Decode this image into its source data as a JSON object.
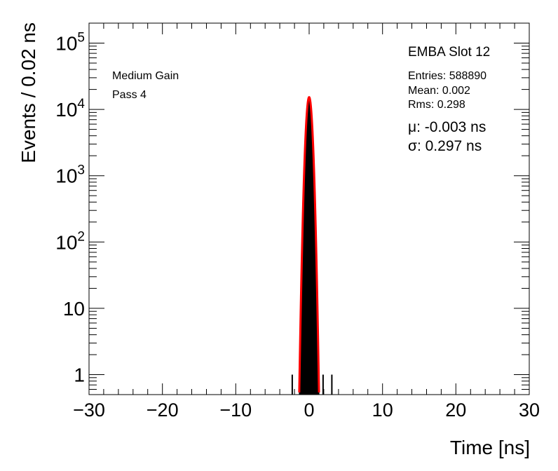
{
  "chart_data": {
    "type": "line",
    "title": "",
    "xlabel": "Time [ns]",
    "ylabel": "Events / 0.02 ns",
    "xlim": [
      -30,
      30
    ],
    "ylim": [
      0.5,
      200000
    ],
    "yscale": "log",
    "grid": false,
    "x_ticks": [
      -30,
      -20,
      -10,
      0,
      10,
      20,
      30
    ],
    "x_tick_labels": [
      "−30",
      "−20",
      "−10",
      "0",
      "10",
      "20",
      "30"
    ],
    "y_ticks": [
      1,
      10,
      100,
      1000,
      10000,
      100000
    ],
    "y_tick_labels": [
      {
        "base": "1",
        "exp": ""
      },
      {
        "base": "10",
        "exp": ""
      },
      {
        "base": "10",
        "exp": "2"
      },
      {
        "base": "10",
        "exp": "3"
      },
      {
        "base": "10",
        "exp": "4"
      },
      {
        "base": "10",
        "exp": "5"
      }
    ],
    "annotations_left": [
      "Medium Gain",
      "Pass 4"
    ],
    "stats": {
      "title": "EMBA Slot 12",
      "entries": "Entries: 588890",
      "mean": "Mean: 0.002",
      "rms": "Rms: 0.298"
    },
    "fit_text": {
      "mu": "μ: -0.003 ns",
      "sigma": "σ: 0.297 ns"
    },
    "fit": {
      "amplitude": 15300,
      "mu": -0.003,
      "sigma": 0.297
    },
    "series": [
      {
        "type": "histogram",
        "color": "#000000",
        "x": [
          -2.3,
          -1.3,
          -1.2,
          -1.1,
          -1.0,
          -0.9,
          -0.8,
          -0.7,
          -0.6,
          -0.5,
          -0.4,
          -0.3,
          -0.2,
          -0.1,
          0.0,
          0.1,
          0.2,
          0.3,
          0.4,
          0.5,
          0.6,
          0.7,
          0.8,
          0.9,
          1.0,
          1.1,
          1.2,
          1.3,
          1.9,
          3.1
        ],
        "y": [
          1,
          1,
          4,
          8,
          55,
          185,
          390,
          1050,
          2050,
          3600,
          6300,
          9800,
          12900,
          14900,
          15300,
          14900,
          12800,
          9600,
          6300,
          3600,
          2000,
          1000,
          380,
          180,
          55,
          9,
          4,
          1,
          1,
          1
        ]
      },
      {
        "type": "fit",
        "color": "#ff0000"
      }
    ]
  }
}
